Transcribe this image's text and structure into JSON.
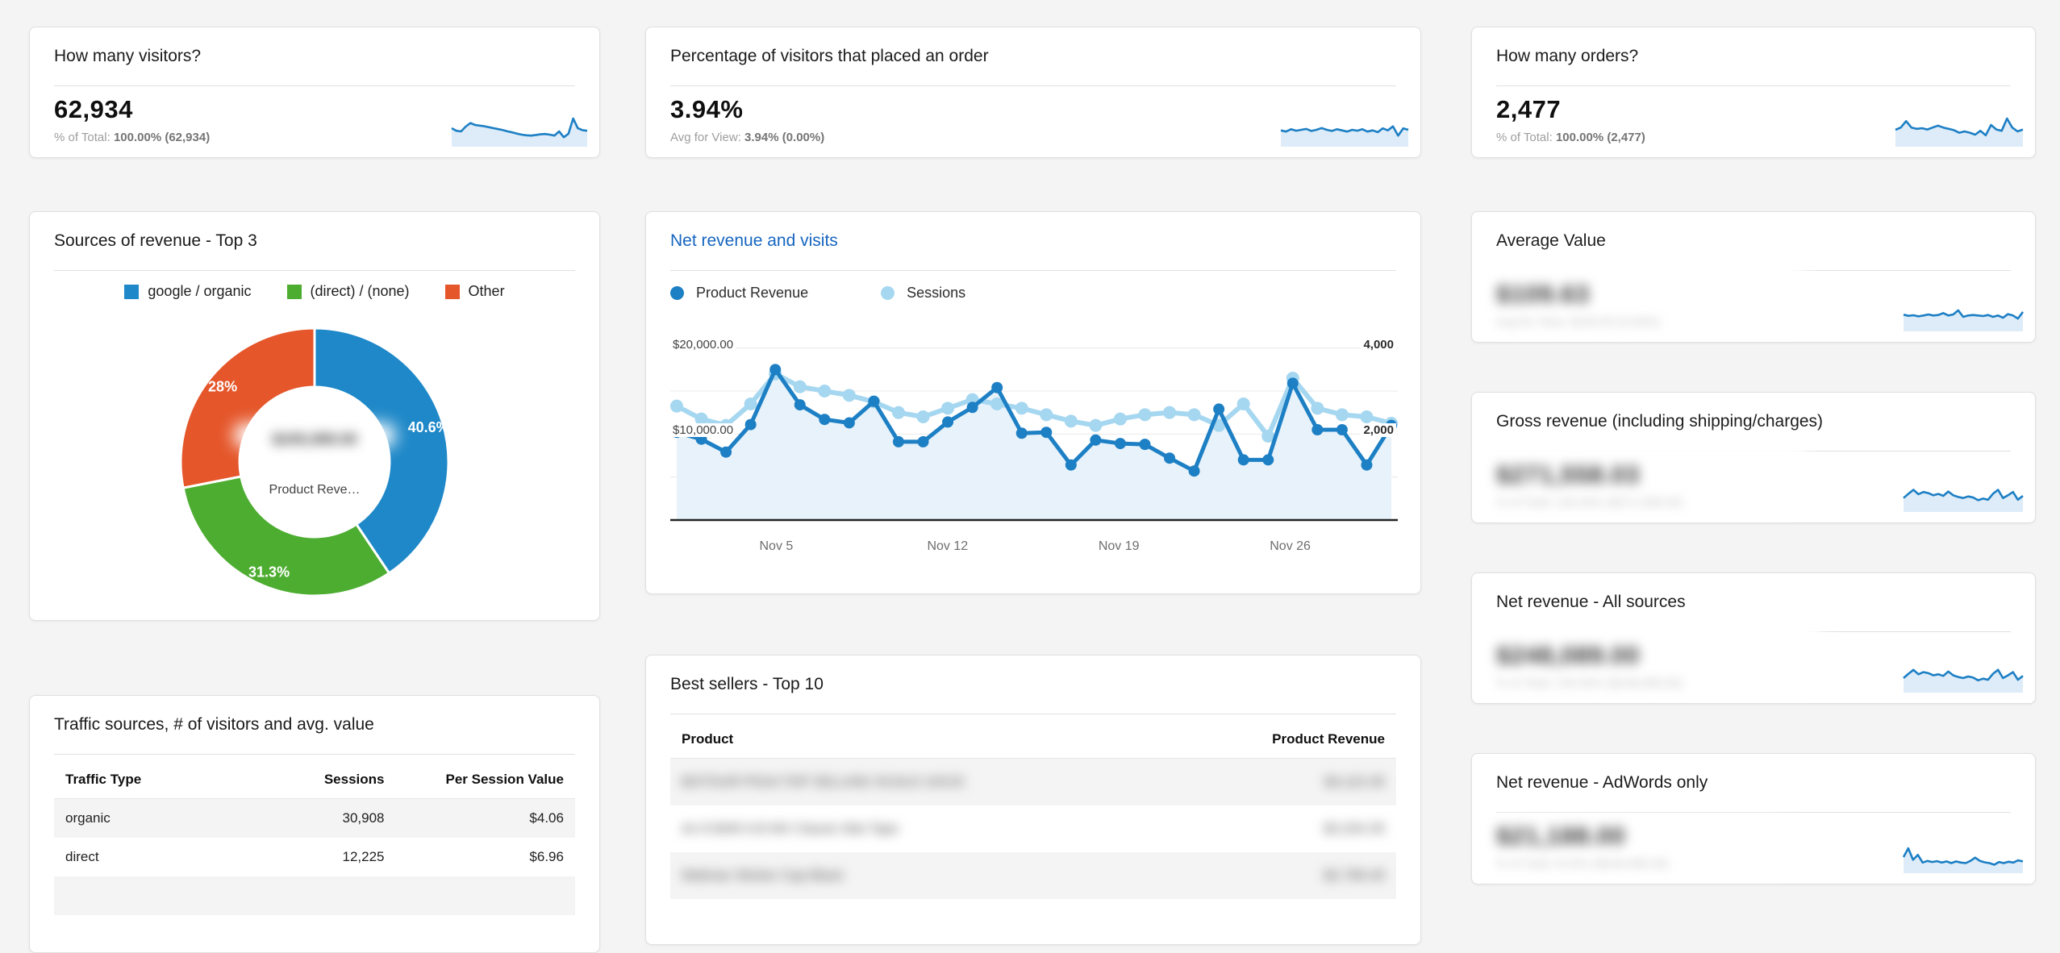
{
  "theme": {
    "page_bg": "#f4f4f4",
    "card_bg": "#ffffff",
    "card_border": "#e0e0e0",
    "accent_blue": "#1d7fc4",
    "spark_fill": "#ddecf8",
    "light_blue": "#a6d7f0",
    "area_fill": "#e7f2fa",
    "link_blue": "#1565c0",
    "axis_black": "#222222",
    "grid_gray": "#e8e8e8"
  },
  "kpis": {
    "visitors": {
      "title": "How many visitors?",
      "value": "62,934",
      "caption_label": "% of Total:",
      "caption_value": "100.00% (62,934)",
      "sparkline": [
        0.5,
        0.42,
        0.4,
        0.55,
        0.66,
        0.6,
        0.58,
        0.56,
        0.53,
        0.5,
        0.47,
        0.44,
        0.4,
        0.37,
        0.33,
        0.3,
        0.28,
        0.27,
        0.29,
        0.31,
        0.32,
        0.3,
        0.27,
        0.4,
        0.22,
        0.33,
        0.8,
        0.5,
        0.44,
        0.42
      ]
    },
    "order_rate": {
      "title": "Percentage of visitors that placed an order",
      "value": "3.94%",
      "caption_label": "Avg for View:",
      "caption_value": "3.94% (0.00%)",
      "sparkline": [
        0.48,
        0.44,
        0.52,
        0.47,
        0.5,
        0.53,
        0.46,
        0.5,
        0.56,
        0.5,
        0.46,
        0.52,
        0.48,
        0.44,
        0.5,
        0.47,
        0.52,
        0.44,
        0.48,
        0.42,
        0.55,
        0.48,
        0.62,
        0.3,
        0.55,
        0.5
      ]
    },
    "orders": {
      "title": "How many orders?",
      "value": "2,477",
      "caption_label": "% of Total:",
      "caption_value": "100.00% (2,477)",
      "sparkline": [
        0.45,
        0.52,
        0.72,
        0.52,
        0.48,
        0.5,
        0.46,
        0.52,
        0.58,
        0.52,
        0.48,
        0.44,
        0.36,
        0.4,
        0.36,
        0.3,
        0.42,
        0.28,
        0.6,
        0.46,
        0.42,
        0.8,
        0.52,
        0.4,
        0.46
      ]
    },
    "average_value": {
      "title": "Average Value",
      "value_redacted": "$109.63",
      "caption_redacted": "Avg for View: $109.63 (0.00%)",
      "sparkline": [
        0.52,
        0.48,
        0.5,
        0.46,
        0.49,
        0.53,
        0.49,
        0.51,
        0.58,
        0.49,
        0.53,
        0.68,
        0.44,
        0.49,
        0.51,
        0.49,
        0.47,
        0.51,
        0.44,
        0.49,
        0.41,
        0.54,
        0.49,
        0.38,
        0.62
      ]
    },
    "gross_revenue": {
      "title": "Gross revenue (including shipping/charges)",
      "value_redacted": "$271,558.03",
      "caption_redacted": "% of Total: 100.00% ($271,558.03)",
      "sparkline": [
        0.42,
        0.58,
        0.72,
        0.56,
        0.64,
        0.6,
        0.52,
        0.57,
        0.5,
        0.66,
        0.52,
        0.46,
        0.42,
        0.48,
        0.44,
        0.34,
        0.4,
        0.36,
        0.58,
        0.72,
        0.42,
        0.52,
        0.64,
        0.36,
        0.5
      ]
    },
    "net_revenue_all": {
      "title": "Net revenue - All sources",
      "value_redacted": "$248,089.00",
      "caption_redacted": "% of Total: 100.00% ($248,089.00)",
      "sparkline": [
        0.44,
        0.6,
        0.74,
        0.58,
        0.66,
        0.62,
        0.54,
        0.58,
        0.52,
        0.68,
        0.54,
        0.48,
        0.44,
        0.5,
        0.46,
        0.36,
        0.42,
        0.38,
        0.6,
        0.74,
        0.44,
        0.54,
        0.66,
        0.38,
        0.52
      ]
    },
    "net_revenue_adwords": {
      "title": "Net revenue - AdWords only",
      "value_redacted": "$21,188.00",
      "caption_redacted": "% of Total: 8.54% ($248,089.00)",
      "sparkline": [
        0.5,
        0.82,
        0.4,
        0.58,
        0.3,
        0.36,
        0.32,
        0.35,
        0.3,
        0.34,
        0.28,
        0.34,
        0.3,
        0.28,
        0.36,
        0.48,
        0.36,
        0.31,
        0.28,
        0.22,
        0.32,
        0.28,
        0.33,
        0.3,
        0.38,
        0.34
      ]
    }
  },
  "chart_data": [
    {
      "id": "revenue_sources_donut",
      "type": "pie",
      "title": "Sources of revenue - Top 3",
      "labels": [
        "google / organic",
        "(direct) / (none)",
        "Other"
      ],
      "values": [
        40.6,
        31.3,
        28.1
      ],
      "slice_labels": [
        "40.6%",
        "31.3%",
        "28%"
      ],
      "colors": [
        "#1e88c8",
        "#4dad31",
        "#e5562a"
      ],
      "donut_hole_ratio": 0.56,
      "center_value_redacted": "$245,089.00",
      "center_label": "Product Reve…",
      "legend_position": "top"
    },
    {
      "id": "net_revenue_and_visits",
      "type": "line",
      "title": "Net revenue and visits",
      "x": [
        "Nov 1",
        "Nov 2",
        "Nov 3",
        "Nov 4",
        "Nov 5",
        "Nov 6",
        "Nov 7",
        "Nov 8",
        "Nov 9",
        "Nov 10",
        "Nov 11",
        "Nov 12",
        "Nov 13",
        "Nov 14",
        "Nov 15",
        "Nov 16",
        "Nov 17",
        "Nov 18",
        "Nov 19",
        "Nov 20",
        "Nov 21",
        "Nov 22",
        "Nov 23",
        "Nov 24",
        "Nov 25",
        "Nov 26",
        "Nov 27",
        "Nov 28",
        "Nov 29",
        "Nov 30"
      ],
      "series": [
        {
          "name": "Product Revenue",
          "axis": "left",
          "color": "#1d7fc4",
          "values": [
            10200,
            9400,
            7900,
            11100,
            17500,
            13400,
            11700,
            11300,
            13800,
            9100,
            9100,
            11400,
            13100,
            15400,
            10100,
            10200,
            6400,
            9300,
            8900,
            8800,
            7200,
            5700,
            12900,
            7000,
            7000,
            15900,
            10500,
            10500,
            6400,
            11000
          ]
        },
        {
          "name": "Sessions",
          "axis": "right",
          "color": "#a6d7f0",
          "values": [
            2650,
            2350,
            2200,
            2700,
            3400,
            3100,
            3000,
            2900,
            2750,
            2500,
            2400,
            2600,
            2800,
            2700,
            2600,
            2450,
            2300,
            2200,
            2350,
            2450,
            2500,
            2450,
            2200,
            2700,
            1950,
            3300,
            2600,
            2450,
            2400,
            2250
          ]
        }
      ],
      "area_under_series": "Product Revenue",
      "x_ticks": [
        {
          "index": 4,
          "label": "Nov 5"
        },
        {
          "index": 11,
          "label": "Nov 12"
        },
        {
          "index": 18,
          "label": "Nov 19"
        },
        {
          "index": 25,
          "label": "Nov 26"
        }
      ],
      "left_axis": {
        "labels": [
          "$20,000.00",
          "$10,000.00"
        ],
        "values": [
          20000,
          10000
        ],
        "max": 22500
      },
      "right_axis": {
        "labels": [
          "4,000",
          "2,000"
        ],
        "values": [
          4000,
          2000
        ],
        "max": 4500
      },
      "grid_values_left": [
        5000,
        10000,
        15000,
        20000
      ]
    }
  ],
  "tables": {
    "traffic": {
      "title": "Traffic sources, # of visitors and avg. value",
      "headers": [
        "Traffic Type",
        "Sessions",
        "Per Session Value"
      ],
      "rows": [
        [
          "organic",
          "30,908",
          "$4.06"
        ],
        [
          "direct",
          "12,225",
          "$6.96"
        ]
      ],
      "redacted": false
    },
    "best_sellers": {
      "title": "Best sellers - Top 10",
      "headers": [
        "Product",
        "Product Revenue"
      ],
      "rows_redacted": [
        [
          "BGTOUR P5XA TOP SELLING SCALD 10X15",
          "$4,115.35"
        ],
        [
          "An 8 BAR A B MX Classic Mat Tape",
          "$3,334.35"
        ],
        [
          "Walman Sticker Cap Black",
          "$2,796.40"
        ]
      ],
      "redacted": true
    }
  }
}
